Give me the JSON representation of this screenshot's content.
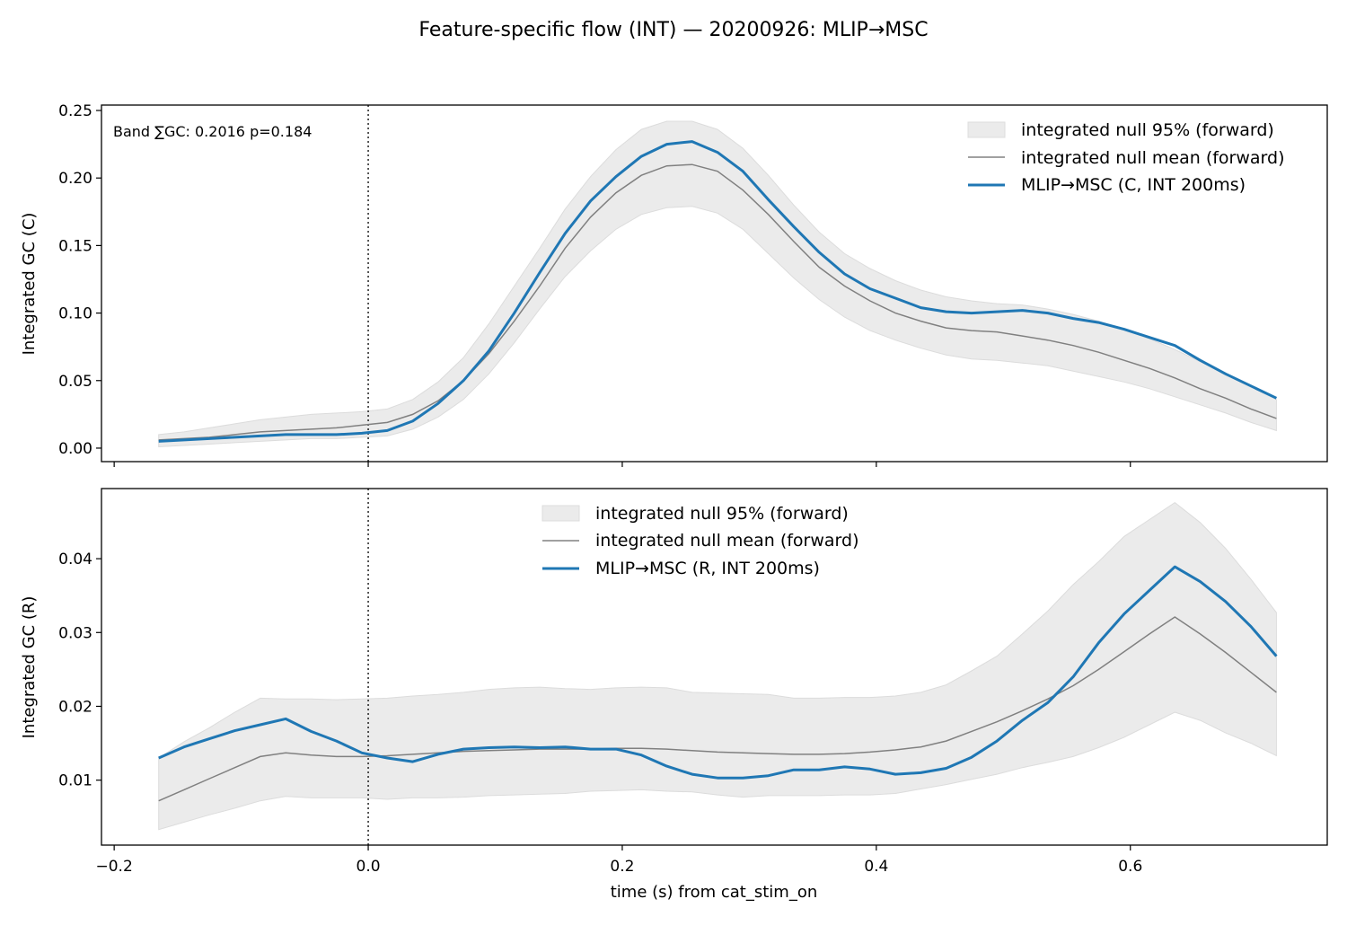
{
  "title": "Feature-specific flow (INT) — 20200926: MLIP→MSC",
  "colors": {
    "series": "#1f77b4",
    "null_mean": "#808080",
    "null_band": "#ebebeb",
    "null_band_edge": "#dcdcdc",
    "axes": "#000000"
  },
  "chart_data": [
    {
      "type": "line",
      "panel": "top",
      "ylabel": "Integrated GC (C)",
      "xlabel": "",
      "xlim": [
        -0.21,
        0.755
      ],
      "ylim": [
        -0.01,
        0.254
      ],
      "xticks": [
        -0.2,
        0.0,
        0.2,
        0.4,
        0.6
      ],
      "xtick_labels_shown": false,
      "yticks": [
        0.0,
        0.05,
        0.1,
        0.15,
        0.2,
        0.25
      ],
      "ytick_labels": [
        "0.00",
        "0.05",
        "0.10",
        "0.15",
        "0.20",
        "0.25"
      ],
      "event_line_x": 0.0,
      "annotation": "Band ∑GC: 0.2016  p=0.184",
      "legend_position": "top-right",
      "legend": [
        "integrated null 95% (forward)",
        "integrated null mean (forward)",
        "MLIP→MSC (C, INT 200ms)"
      ],
      "x": [
        -0.165,
        -0.145,
        -0.125,
        -0.105,
        -0.085,
        -0.065,
        -0.045,
        -0.025,
        -0.005,
        0.015,
        0.035,
        0.055,
        0.075,
        0.095,
        0.115,
        0.135,
        0.155,
        0.175,
        0.195,
        0.215,
        0.235,
        0.255,
        0.275,
        0.295,
        0.315,
        0.335,
        0.355,
        0.375,
        0.395,
        0.415,
        0.435,
        0.455,
        0.475,
        0.495,
        0.515,
        0.535,
        0.555,
        0.575,
        0.595,
        0.615,
        0.635,
        0.655,
        0.675,
        0.695,
        0.715
      ],
      "series": [
        {
          "name": "integrated null 95% (forward)",
          "role": "band",
          "lower": [
            0.001,
            0.002,
            0.003,
            0.004,
            0.005,
            0.006,
            0.007,
            0.007,
            0.008,
            0.009,
            0.014,
            0.023,
            0.036,
            0.055,
            0.078,
            0.103,
            0.127,
            0.146,
            0.162,
            0.173,
            0.178,
            0.179,
            0.174,
            0.162,
            0.144,
            0.126,
            0.11,
            0.097,
            0.087,
            0.08,
            0.074,
            0.069,
            0.066,
            0.065,
            0.063,
            0.061,
            0.057,
            0.053,
            0.049,
            0.044,
            0.038,
            0.032,
            0.026,
            0.019,
            0.013
          ],
          "upper": [
            0.01,
            0.012,
            0.015,
            0.018,
            0.021,
            0.023,
            0.025,
            0.026,
            0.027,
            0.029,
            0.036,
            0.049,
            0.067,
            0.092,
            0.12,
            0.148,
            0.177,
            0.201,
            0.221,
            0.236,
            0.242,
            0.242,
            0.236,
            0.222,
            0.202,
            0.18,
            0.16,
            0.144,
            0.133,
            0.124,
            0.117,
            0.112,
            0.109,
            0.107,
            0.106,
            0.103,
            0.099,
            0.094,
            0.088,
            0.081,
            0.073,
            0.064,
            0.055,
            0.046,
            0.036
          ]
        },
        {
          "name": "integrated null mean (forward)",
          "role": "mean",
          "values": [
            0.006,
            0.007,
            0.008,
            0.01,
            0.012,
            0.013,
            0.014,
            0.015,
            0.017,
            0.019,
            0.025,
            0.035,
            0.05,
            0.07,
            0.094,
            0.12,
            0.148,
            0.171,
            0.189,
            0.202,
            0.209,
            0.21,
            0.205,
            0.191,
            0.173,
            0.153,
            0.134,
            0.12,
            0.109,
            0.1,
            0.094,
            0.089,
            0.087,
            0.086,
            0.083,
            0.08,
            0.076,
            0.071,
            0.065,
            0.059,
            0.052,
            0.044,
            0.037,
            0.029,
            0.022
          ]
        },
        {
          "name": "MLIP→MSC (C, INT 200ms)",
          "role": "observed",
          "values": [
            0.005,
            0.006,
            0.007,
            0.008,
            0.009,
            0.01,
            0.01,
            0.01,
            0.011,
            0.013,
            0.02,
            0.033,
            0.05,
            0.072,
            0.1,
            0.13,
            0.159,
            0.183,
            0.201,
            0.216,
            0.225,
            0.227,
            0.219,
            0.205,
            0.184,
            0.164,
            0.145,
            0.129,
            0.118,
            0.111,
            0.104,
            0.101,
            0.1,
            0.101,
            0.102,
            0.1,
            0.096,
            0.093,
            0.088,
            0.082,
            0.076,
            0.065,
            0.055,
            0.046,
            0.037
          ]
        }
      ]
    },
    {
      "type": "line",
      "panel": "bottom",
      "ylabel": "Integrated GC (R)",
      "xlabel": "time (s) from cat_stim_on",
      "xlim": [
        -0.21,
        0.755
      ],
      "ylim": [
        0.0012,
        0.0495
      ],
      "xticks": [
        -0.2,
        0.0,
        0.2,
        0.4,
        0.6
      ],
      "xtick_labels": [
        "−0.2",
        "0.0",
        "0.2",
        "0.4",
        "0.6"
      ],
      "yticks": [
        0.01,
        0.02,
        0.03,
        0.04
      ],
      "ytick_labels": [
        "0.01",
        "0.02",
        "0.03",
        "0.04"
      ],
      "event_line_x": 0.0,
      "legend_position": "top-center",
      "legend": [
        "integrated null 95% (forward)",
        "integrated null mean (forward)",
        "MLIP→MSC (R, INT 200ms)"
      ],
      "x": [
        -0.165,
        -0.145,
        -0.125,
        -0.105,
        -0.085,
        -0.065,
        -0.045,
        -0.025,
        -0.005,
        0.015,
        0.035,
        0.055,
        0.075,
        0.095,
        0.115,
        0.135,
        0.155,
        0.175,
        0.195,
        0.215,
        0.235,
        0.255,
        0.275,
        0.295,
        0.315,
        0.335,
        0.355,
        0.375,
        0.395,
        0.415,
        0.435,
        0.455,
        0.475,
        0.495,
        0.515,
        0.535,
        0.555,
        0.575,
        0.595,
        0.615,
        0.635,
        0.655,
        0.675,
        0.695,
        0.715
      ],
      "series": [
        {
          "name": "integrated null 95% (forward)",
          "role": "band",
          "lower": [
            0.0033,
            0.0043,
            0.0053,
            0.0062,
            0.0072,
            0.0078,
            0.0076,
            0.0076,
            0.0076,
            0.0074,
            0.0076,
            0.0076,
            0.0077,
            0.0079,
            0.008,
            0.0081,
            0.0082,
            0.0085,
            0.0086,
            0.0087,
            0.0085,
            0.0084,
            0.008,
            0.0077,
            0.0079,
            0.0079,
            0.0079,
            0.008,
            0.008,
            0.0082,
            0.0088,
            0.0094,
            0.0101,
            0.0108,
            0.0117,
            0.0124,
            0.0132,
            0.0144,
            0.0158,
            0.0175,
            0.0192,
            0.0181,
            0.0164,
            0.015,
            0.0133
          ],
          "upper": [
            0.013,
            0.0152,
            0.0171,
            0.0192,
            0.0211,
            0.021,
            0.021,
            0.0209,
            0.021,
            0.0211,
            0.0214,
            0.0216,
            0.0219,
            0.0223,
            0.0225,
            0.0226,
            0.0224,
            0.0223,
            0.0225,
            0.0226,
            0.0225,
            0.0219,
            0.0218,
            0.0217,
            0.0216,
            0.0211,
            0.0211,
            0.0212,
            0.0212,
            0.0214,
            0.0219,
            0.0229,
            0.0248,
            0.0268,
            0.0298,
            0.0329,
            0.0365,
            0.0396,
            0.043,
            0.0453,
            0.0476,
            0.0449,
            0.0414,
            0.0372,
            0.0327
          ]
        },
        {
          "name": "integrated null mean (forward)",
          "role": "mean",
          "values": [
            0.0072,
            0.0087,
            0.0102,
            0.0117,
            0.0132,
            0.0137,
            0.0134,
            0.0132,
            0.0132,
            0.0133,
            0.0135,
            0.0137,
            0.0139,
            0.014,
            0.0141,
            0.0142,
            0.0142,
            0.0142,
            0.0143,
            0.0143,
            0.0142,
            0.014,
            0.0138,
            0.0137,
            0.0136,
            0.0135,
            0.0135,
            0.0136,
            0.0138,
            0.0141,
            0.0145,
            0.0153,
            0.0166,
            0.0179,
            0.0194,
            0.021,
            0.0228,
            0.025,
            0.0274,
            0.0298,
            0.0321,
            0.0298,
            0.0273,
            0.0246,
            0.0219
          ]
        },
        {
          "name": "MLIP→MSC (R, INT 200ms)",
          "role": "observed",
          "values": [
            0.013,
            0.0145,
            0.0156,
            0.0167,
            0.0175,
            0.0183,
            0.0166,
            0.0153,
            0.0137,
            0.013,
            0.0125,
            0.0135,
            0.0142,
            0.0144,
            0.0145,
            0.0144,
            0.0145,
            0.0142,
            0.0142,
            0.0134,
            0.0119,
            0.0108,
            0.0103,
            0.0103,
            0.0106,
            0.0114,
            0.0114,
            0.0118,
            0.0115,
            0.0108,
            0.011,
            0.0116,
            0.0131,
            0.0153,
            0.0181,
            0.0205,
            0.024,
            0.0286,
            0.0325,
            0.0357,
            0.0389,
            0.0369,
            0.0342,
            0.0308,
            0.0268
          ]
        }
      ]
    }
  ]
}
